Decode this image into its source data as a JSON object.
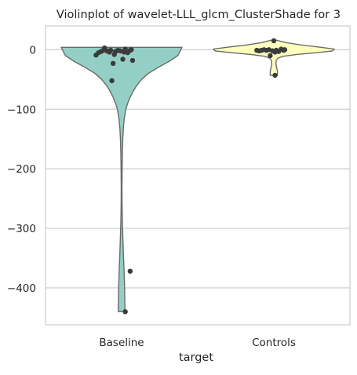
{
  "chart_data": {
    "type": "violin",
    "title": "Violinplot of wavelet-LLL_glcm_ClusterShade for 3",
    "xlabel": "target",
    "ylabel": "",
    "categories": [
      "Baseline",
      "Controls"
    ],
    "ylim": [
      -462,
      40
    ],
    "yticks": [
      0,
      -100,
      -200,
      -300,
      -400
    ],
    "ytick_labels": [
      "0",
      "−100",
      "−200",
      "−300",
      "−400"
    ],
    "grid": true,
    "colors": {
      "Baseline": "#93cfc5",
      "Controls": "#ffffbd",
      "points": "#3b3b3b",
      "outline": "#6b6b6b"
    },
    "density": {
      "Baseline": [
        {
          "y": 4,
          "w": 1.0
        },
        {
          "y": -10,
          "w": 0.93
        },
        {
          "y": -20,
          "w": 0.78
        },
        {
          "y": -30,
          "w": 0.6
        },
        {
          "y": -40,
          "w": 0.44
        },
        {
          "y": -50,
          "w": 0.33
        },
        {
          "y": -60,
          "w": 0.25
        },
        {
          "y": -70,
          "w": 0.19
        },
        {
          "y": -80,
          "w": 0.14
        },
        {
          "y": -90,
          "w": 0.1
        },
        {
          "y": -100,
          "w": 0.07
        },
        {
          "y": -115,
          "w": 0.045
        },
        {
          "y": -130,
          "w": 0.03
        },
        {
          "y": -150,
          "w": 0.02
        },
        {
          "y": -175,
          "w": 0.013
        },
        {
          "y": -200,
          "w": 0.009
        },
        {
          "y": -230,
          "w": 0.007
        },
        {
          "y": -260,
          "w": 0.008
        },
        {
          "y": -290,
          "w": 0.013
        },
        {
          "y": -320,
          "w": 0.022
        },
        {
          "y": -345,
          "w": 0.03
        },
        {
          "y": -360,
          "w": 0.036
        },
        {
          "y": -375,
          "w": 0.042
        },
        {
          "y": -395,
          "w": 0.048
        },
        {
          "y": -415,
          "w": 0.052
        },
        {
          "y": -430,
          "w": 0.054
        },
        {
          "y": -440,
          "w": 0.054
        }
      ],
      "Controls": [
        {
          "y": 16,
          "w": 0.04
        },
        {
          "y": 12,
          "w": 0.2
        },
        {
          "y": 8,
          "w": 0.45
        },
        {
          "y": 4,
          "w": 0.78
        },
        {
          "y": 1,
          "w": 1.0
        },
        {
          "y": -2,
          "w": 0.97
        },
        {
          "y": -5,
          "w": 0.7
        },
        {
          "y": -8,
          "w": 0.38
        },
        {
          "y": -11,
          "w": 0.16
        },
        {
          "y": -14,
          "w": 0.07
        },
        {
          "y": -18,
          "w": 0.04
        },
        {
          "y": -23,
          "w": 0.035
        },
        {
          "y": -28,
          "w": 0.04
        },
        {
          "y": -32,
          "w": 0.05
        },
        {
          "y": -36,
          "w": 0.06
        },
        {
          "y": -40,
          "w": 0.06
        },
        {
          "y": -43,
          "w": 0.06
        }
      ]
    },
    "points": {
      "Baseline": [
        {
          "x": -0.21,
          "y": -9
        },
        {
          "x": -0.19,
          "y": -5
        },
        {
          "x": -0.17,
          "y": -3
        },
        {
          "x": -0.15,
          "y": -1
        },
        {
          "x": -0.14,
          "y": 3
        },
        {
          "x": -0.12,
          "y": -2
        },
        {
          "x": -0.1,
          "y": -4
        },
        {
          "x": -0.09,
          "y": -1
        },
        {
          "x": -0.07,
          "y": -23
        },
        {
          "x": -0.06,
          "y": -8
        },
        {
          "x": -0.05,
          "y": -3
        },
        {
          "x": -0.03,
          "y": -1
        },
        {
          "x": -0.01,
          "y": -2
        },
        {
          "x": 0.01,
          "y": -16
        },
        {
          "x": 0.02,
          "y": -4
        },
        {
          "x": 0.03,
          "y": 1
        },
        {
          "x": 0.05,
          "y": -5
        },
        {
          "x": 0.07,
          "y": -1
        },
        {
          "x": 0.08,
          "y": 0
        },
        {
          "x": 0.09,
          "y": -18
        },
        {
          "x": -0.08,
          "y": -52
        },
        {
          "x": 0.07,
          "y": -372
        },
        {
          "x": 0.03,
          "y": -440
        }
      ],
      "Controls": [
        {
          "x": -0.14,
          "y": -1
        },
        {
          "x": -0.12,
          "y": -2
        },
        {
          "x": -0.1,
          "y": -1
        },
        {
          "x": -0.08,
          "y": 0
        },
        {
          "x": -0.06,
          "y": -1
        },
        {
          "x": -0.04,
          "y": 0
        },
        {
          "x": -0.03,
          "y": -10
        },
        {
          "x": -0.01,
          "y": -2
        },
        {
          "x": 0.01,
          "y": -4
        },
        {
          "x": 0.0,
          "y": 15
        },
        {
          "x": 0.02,
          "y": -1
        },
        {
          "x": 0.04,
          "y": -3
        },
        {
          "x": 0.06,
          "y": 1
        },
        {
          "x": 0.08,
          "y": -1
        },
        {
          "x": 0.09,
          "y": 0
        },
        {
          "x": 0.01,
          "y": -43
        }
      ]
    }
  }
}
